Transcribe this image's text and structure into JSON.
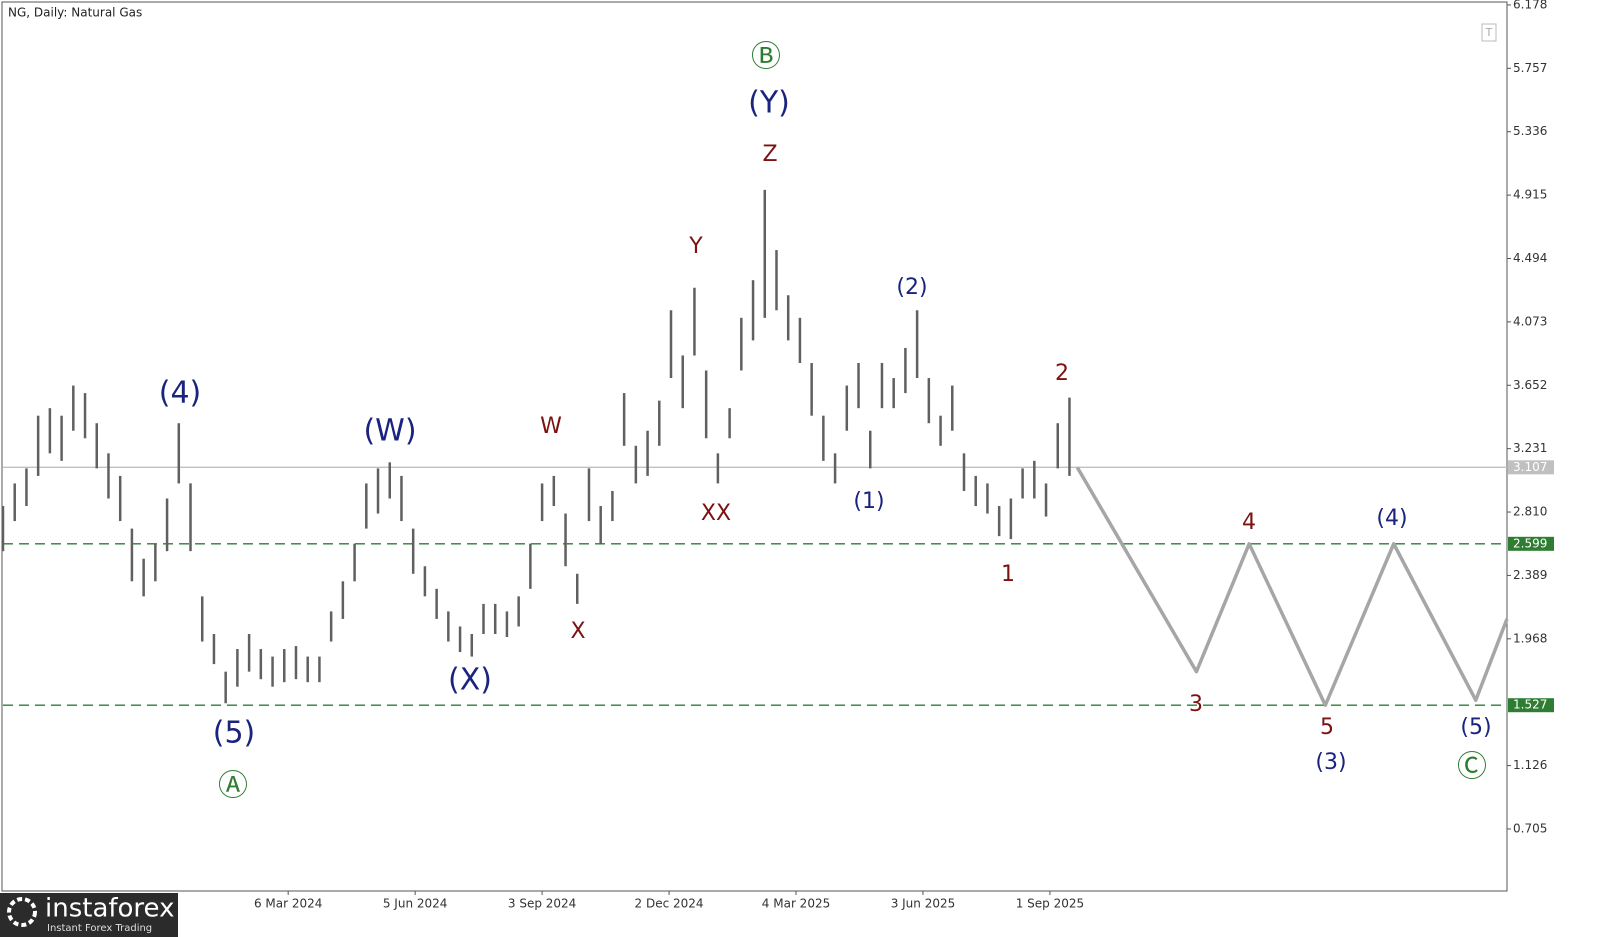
{
  "chart_data": {
    "type": "range",
    "title": "NG, Daily:  Natural Gas",
    "logo": {
      "name": "instaforex",
      "tagline": "Instant Forex Trading"
    },
    "xlim": [
      0,
      770
    ],
    "xticks": [
      {
        "value": 146,
        "label": "6 Mar 2024"
      },
      {
        "value": 211,
        "label": "5 Jun 2024"
      },
      {
        "value": 276,
        "label": "3 Sep 2024"
      },
      {
        "value": 341,
        "label": "2 Dec 2024"
      },
      {
        "value": 406,
        "label": "4 Mar 2025"
      },
      {
        "value": 471,
        "label": "3 Jun 2025"
      },
      {
        "value": 536,
        "label": "1 Sep 2025"
      }
    ],
    "ylim": [
      0.293,
      6.191
    ],
    "yticks": [
      6.178,
      5.757,
      5.336,
      4.915,
      4.494,
      4.073,
      3.652,
      3.231,
      {
        "value": 2.81,
        "label": "2.810"
      },
      2.389,
      1.968,
      1.126,
      0.705
    ],
    "bars": {
      "color": "#606060",
      "x": [
        0,
        6,
        12,
        18,
        24,
        30,
        36,
        42,
        48,
        54,
        60,
        66,
        72,
        78,
        84,
        90,
        96,
        102,
        108,
        114,
        120,
        126,
        132,
        138,
        144,
        150,
        156,
        162,
        168,
        174,
        180,
        186,
        192,
        198,
        204,
        210,
        216,
        222,
        228,
        234,
        240,
        246,
        252,
        258,
        264,
        270,
        276,
        282,
        288,
        294,
        300,
        306,
        312,
        318,
        324,
        330,
        336,
        342,
        348,
        354,
        360,
        366,
        372,
        378,
        384,
        390,
        396,
        402,
        408,
        414,
        420,
        426,
        432,
        438,
        444,
        450,
        456,
        462,
        468,
        474,
        480,
        486,
        492,
        498,
        504,
        510,
        516,
        522,
        528,
        534,
        540,
        546
      ],
      "low": [
        2.55,
        2.75,
        2.85,
        3.05,
        3.2,
        3.15,
        3.35,
        3.3,
        3.1,
        2.9,
        2.75,
        2.35,
        2.25,
        2.35,
        2.55,
        3.0,
        2.55,
        1.95,
        1.8,
        1.54,
        1.65,
        1.75,
        1.7,
        1.65,
        1.68,
        1.7,
        1.68,
        1.68,
        1.95,
        2.1,
        2.35,
        2.7,
        2.8,
        2.9,
        2.75,
        2.4,
        2.25,
        2.1,
        1.95,
        1.88,
        1.85,
        2.0,
        2.0,
        1.98,
        2.05,
        2.3,
        2.75,
        2.85,
        2.45,
        2.2,
        2.75,
        2.6,
        2.75,
        3.25,
        3.0,
        3.05,
        3.25,
        3.7,
        3.5,
        3.85,
        3.3,
        3.0,
        3.3,
        3.75,
        3.95,
        4.1,
        4.15,
        3.95,
        3.8,
        3.45,
        3.15,
        3.0,
        3.35,
        3.5,
        3.1,
        3.5,
        3.5,
        3.6,
        3.7,
        3.4,
        3.25,
        3.35,
        2.95,
        2.85,
        2.8,
        2.65,
        2.63,
        2.9,
        2.9,
        2.78,
        3.1,
        3.05
      ],
      "high": [
        2.85,
        3.0,
        3.1,
        3.45,
        3.5,
        3.45,
        3.65,
        3.6,
        3.4,
        3.2,
        3.05,
        2.7,
        2.5,
        2.6,
        2.9,
        3.4,
        3.0,
        2.25,
        2.0,
        1.75,
        1.9,
        2.0,
        1.9,
        1.85,
        1.9,
        1.92,
        1.85,
        1.85,
        2.15,
        2.35,
        2.6,
        3.0,
        3.1,
        3.14,
        3.05,
        2.7,
        2.45,
        2.3,
        2.15,
        2.05,
        2.0,
        2.2,
        2.2,
        2.15,
        2.25,
        2.6,
        3.0,
        3.05,
        2.8,
        2.4,
        3.1,
        2.85,
        2.95,
        3.6,
        3.25,
        3.35,
        3.55,
        4.15,
        3.85,
        4.3,
        3.75,
        3.2,
        3.5,
        4.1,
        4.35,
        4.95,
        4.55,
        4.25,
        4.1,
        3.8,
        3.45,
        3.2,
        3.65,
        3.8,
        3.35,
        3.8,
        3.7,
        3.9,
        4.15,
        3.7,
        3.45,
        3.65,
        3.2,
        3.05,
        3.0,
        2.85,
        2.9,
        3.1,
        3.15,
        3.0,
        3.4,
        3.57
      ]
    },
    "projection": {
      "color": "#a6a6a6",
      "x": [
        550,
        611,
        638,
        677,
        712,
        754,
        770
      ],
      "values": [
        3.107,
        1.75,
        2.599,
        1.527,
        2.599,
        1.56,
        2.1
      ]
    },
    "levels": [
      {
        "value": 3.107,
        "style": "solid",
        "color": "#c0c0c0"
      },
      {
        "value": 2.599,
        "style": "dashed",
        "color": "#2e7d32"
      },
      {
        "value": 1.527,
        "style": "dashed",
        "color": "#2e7d32"
      }
    ],
    "annotations": [
      {
        "text": "Ⓑ",
        "color": "#2e7d32"
      },
      {
        "text": "(Y)",
        "color": "#1a237e"
      },
      {
        "text": "Z",
        "color": "#7b1111"
      },
      {
        "text": "Y",
        "color": "#7b1111"
      },
      {
        "text": "W",
        "color": "#7b1111"
      },
      {
        "text": "XX",
        "color": "#7b1111"
      },
      {
        "text": "X",
        "color": "#7b1111"
      },
      {
        "text": "(W)",
        "color": "#1a237e"
      },
      {
        "text": "(X)",
        "color": "#1a237e"
      },
      {
        "text": "(4)",
        "color": "#1a237e"
      },
      {
        "text": "(5)",
        "color": "#1a237e"
      },
      {
        "text": "Ⓐ",
        "color": "#2e7d32"
      },
      {
        "text": "(1)",
        "color": "#1a237e"
      },
      {
        "text": "(2)",
        "color": "#1a237e"
      },
      {
        "text": "2",
        "color": "#7b1111"
      },
      {
        "text": "1",
        "color": "#7b1111"
      },
      {
        "text": "3",
        "color": "#7b1111"
      },
      {
        "text": "4",
        "color": "#7b1111"
      },
      {
        "text": "(4)",
        "color": "#1a237e"
      },
      {
        "text": "5",
        "color": "#7b1111"
      },
      {
        "text": "(3)",
        "color": "#1a237e"
      },
      {
        "text": "(5)",
        "color": "#1a237e"
      },
      {
        "text": "Ⓒ",
        "color": "#2e7d32"
      }
    ]
  }
}
